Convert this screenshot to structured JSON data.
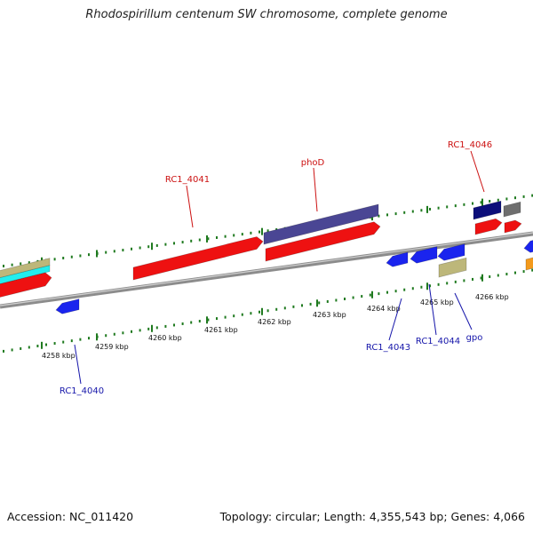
{
  "header": {
    "title": "Rhodospirillum centenum SW chromosome, complete genome"
  },
  "footer": {
    "accession": "Accession: NC_011420",
    "stats": "Topology: circular; Length: 4,355,543 bp; Genes: 4,066"
  },
  "colors": {
    "red_gene": "#ee1111",
    "blue_gene": "#1a24ee",
    "navy_gene": "#0c0f7a",
    "purple_gene": "#4a4694",
    "khaki_gene": "#bdb77a",
    "cyan_gene": "#22eeee",
    "gray_gene": "#6e6e6e",
    "orange_gene": "#f39a1c",
    "backbone": "#8c8c8c",
    "tick": "#1f7a1f",
    "forward_label": "#cc1111",
    "reverse_label": "#1616aa"
  },
  "ruler": {
    "labels": [
      "4258 kbp",
      "4259 kbp",
      "4260 kbp",
      "4261 kbp",
      "4262 kbp",
      "4263 kbp",
      "4264 kbp",
      "4265 kbp",
      "4266 kbp"
    ]
  },
  "genes": [
    {
      "id": "g-fwd-left-red",
      "strand": "forward",
      "color": "red_gene"
    },
    {
      "id": "g-fwd-left-cyan",
      "strand": "forward",
      "color": "cyan_gene"
    },
    {
      "id": "g-fwd-left-khaki",
      "strand": "forward",
      "color": "khaki_gene"
    },
    {
      "id": "g-rc1-4041",
      "strand": "forward",
      "color": "red_gene",
      "label": "RC1_4041"
    },
    {
      "id": "g-phod-purple",
      "strand": "forward",
      "color": "purple_gene"
    },
    {
      "id": "g-phod",
      "strand": "forward",
      "color": "red_gene",
      "label": "phoD"
    },
    {
      "id": "g-rc1-4046-navy",
      "strand": "forward",
      "color": "navy_gene",
      "label": "RC1_4046"
    },
    {
      "id": "g-fwd-gray",
      "strand": "forward",
      "color": "gray_gene"
    },
    {
      "id": "g-fwd-red-a",
      "strand": "forward",
      "color": "red_gene"
    },
    {
      "id": "g-fwd-red-b",
      "strand": "forward",
      "color": "red_gene"
    },
    {
      "id": "g-rc1-4040",
      "strand": "reverse",
      "color": "blue_gene",
      "label": "RC1_4040"
    },
    {
      "id": "g-rc1-4043",
      "strand": "reverse",
      "color": "blue_gene",
      "label": "RC1_4043"
    },
    {
      "id": "g-rc1-4044",
      "strand": "reverse",
      "color": "blue_gene",
      "label": "RC1_4044"
    },
    {
      "id": "g-rev-blue-c",
      "strand": "reverse",
      "color": "blue_gene"
    },
    {
      "id": "g-gpo",
      "strand": "reverse",
      "color": "khaki_gene",
      "label": "gpo"
    },
    {
      "id": "g-rev-blue-edge",
      "strand": "reverse",
      "color": "blue_gene"
    },
    {
      "id": "g-rev-orange-edge",
      "strand": "reverse",
      "color": "orange_gene"
    }
  ]
}
